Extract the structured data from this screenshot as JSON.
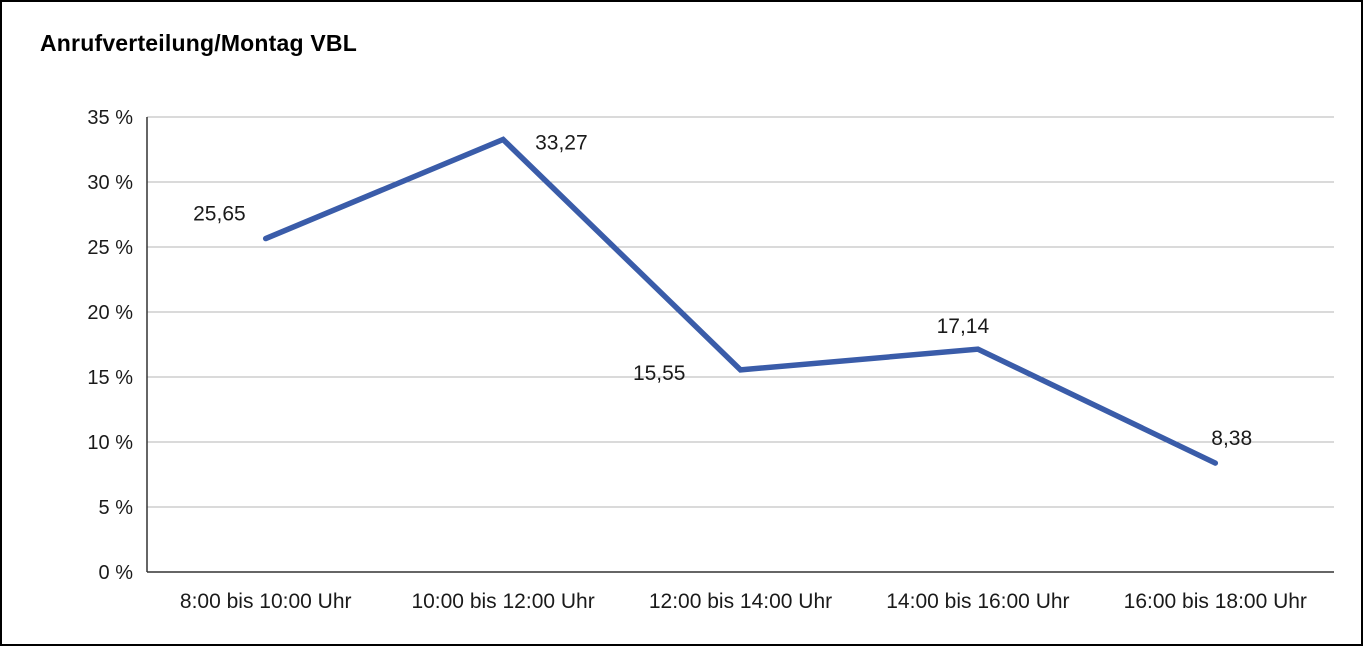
{
  "chart_data": {
    "type": "line",
    "title": "Anrufverteilung/Montag VBL",
    "categories": [
      "8:00 bis 10:00 Uhr",
      "10:00 bis 12:00 Uhr",
      "12:00 bis 14:00 Uhr",
      "14:00 bis 16:00 Uhr",
      "16:00 bis 18:00 Uhr"
    ],
    "values": [
      25.65,
      33.27,
      15.55,
      17.14,
      8.38
    ],
    "data_labels": [
      "25,65",
      "33,27",
      "15,55",
      "17,14",
      "8,38"
    ],
    "xlabel": "",
    "ylabel": "",
    "ylim": [
      0,
      35
    ],
    "ytick_step": 5,
    "ytick_labels": [
      "0 %",
      "5 %",
      "10 %",
      "15 %",
      "20 %",
      "25 %",
      "30 %",
      "35 %"
    ],
    "grid": true,
    "legend": "none",
    "colors": {
      "line": "#3a5ca9",
      "grid": "#b5b5b5",
      "axis": "#333333",
      "text": "#1a1a1a"
    }
  }
}
